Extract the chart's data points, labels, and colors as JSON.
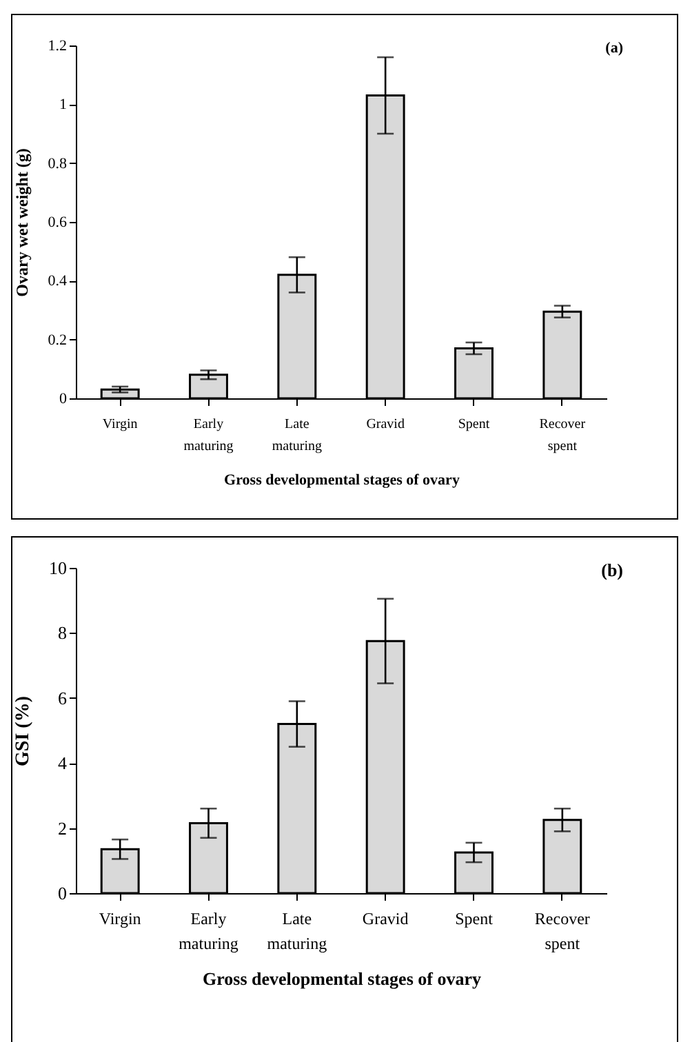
{
  "chart_data": [
    {
      "type": "bar",
      "categories": [
        "Virgin",
        "Early maturing",
        "Late maturing",
        "Gravid",
        "Spent",
        "Recover spent"
      ],
      "values": [
        0.03,
        0.08,
        0.42,
        1.03,
        0.17,
        0.295
      ],
      "color": "#d9d9d9",
      "errors": [
        0.01,
        0.015,
        0.06,
        0.13,
        0.02,
        0.02
      ],
      "ylim": [
        0,
        1.2
      ],
      "yticks": [
        0,
        0.2,
        0.4,
        0.6,
        0.8,
        1,
        1.2
      ],
      "xlabel": "Gross developmental stages of ovary",
      "ylabel": "Ovary wet weight (g)",
      "annotations": [
        "(a)"
      ],
      "grid": false,
      "legend": false
    },
    {
      "type": "bar",
      "categories": [
        "Virgin",
        "Early maturing",
        "Late maturing",
        "Gravid",
        "Spent",
        "Recover spent"
      ],
      "values": [
        1.35,
        2.15,
        5.2,
        7.75,
        1.25,
        2.25
      ],
      "color": "#d9d9d9",
      "errors": [
        0.3,
        0.45,
        0.7,
        1.3,
        0.3,
        0.35
      ],
      "ylim": [
        0,
        10
      ],
      "yticks": [
        0,
        2,
        4,
        6,
        8,
        10
      ],
      "xlabel": "Gross developmental stages of ovary",
      "ylabel": "GSI (%)",
      "annotations": [
        "(b)"
      ],
      "grid": false,
      "legend": false
    }
  ]
}
